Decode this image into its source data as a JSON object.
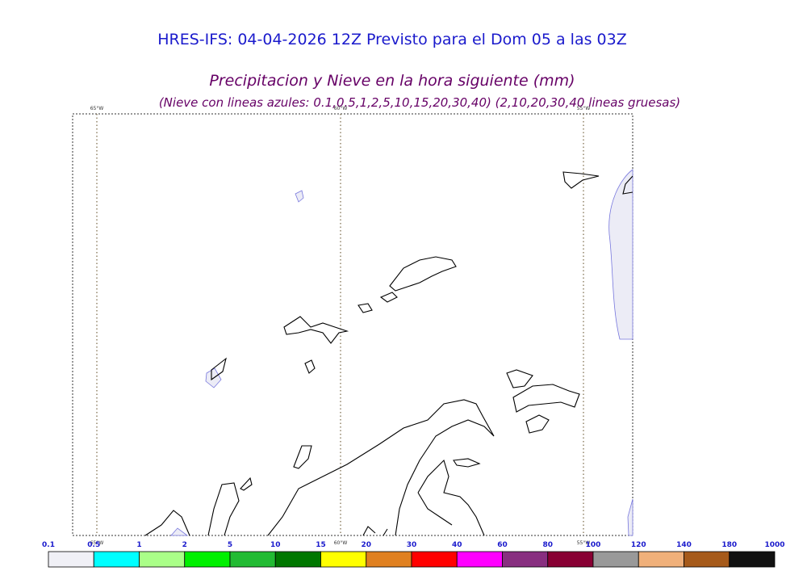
{
  "header": {
    "title": "HRES-IFS: 04-04-2026 12Z Previsto para el Dom 05 a las 03Z",
    "subtitle": "Precipitacion y Nieve en la hora siguiente (mm)",
    "note": "(Nieve con lineas azules: 0.1,0.5,1,2,5,10,15,20,30,40)  (2,10,20,30,40 lineas gruesas)"
  },
  "map": {
    "lon_labels": [
      "65°W",
      "60°W",
      "55°W"
    ]
  },
  "colorbar": {
    "labels": [
      "0.1",
      "0.5",
      "1",
      "2",
      "5",
      "10",
      "15",
      "20",
      "30",
      "40",
      "60",
      "80",
      "100",
      "120",
      "140",
      "180",
      "1000"
    ],
    "colors": [
      "#f0f0f6",
      "#00ffff",
      "#aaff88",
      "#00f000",
      "#22bb33",
      "#007700",
      "#ffff00",
      "#e08020",
      "#ff0000",
      "#ff00ff",
      "#882f80",
      "#880033",
      "#999999",
      "#f0b07a",
      "#a65a1a",
      "#111111"
    ]
  }
}
